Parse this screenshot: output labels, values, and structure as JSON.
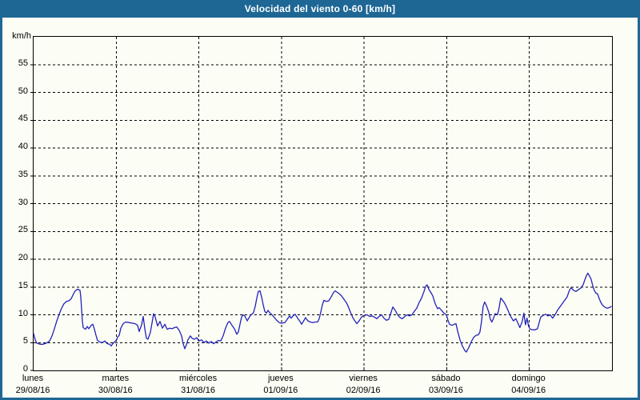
{
  "window": {
    "title": "Velocidad del viento 0-60 [km/h]"
  },
  "colors": {
    "title_bar": "#1e6795",
    "window_border": "#1e6795",
    "background": "#fcfdf5",
    "line": "#2222bb",
    "grid": "#000000"
  },
  "chart_data": {
    "type": "line",
    "title": "Velocidad del viento 0-60 [km/h]",
    "unit_label": "km/h",
    "ylim": [
      0,
      60
    ],
    "ytick_step": 5,
    "yticks": [
      0,
      5,
      10,
      15,
      20,
      25,
      30,
      35,
      40,
      45,
      50,
      55
    ],
    "grid": "dashed",
    "legend_position": "none",
    "x_axis": {
      "unit": "days",
      "days": [
        {
          "name": "lunes",
          "date": "29/08/16"
        },
        {
          "name": "martes",
          "date": "30/08/16"
        },
        {
          "name": "miércoles",
          "date": "31/08/16"
        },
        {
          "name": "jueves",
          "date": "01/09/16"
        },
        {
          "name": "viernes",
          "date": "02/09/16"
        },
        {
          "name": "sábado",
          "date": "03/09/16"
        },
        {
          "name": "domingo",
          "date": "04/09/16"
        }
      ]
    },
    "series": [
      {
        "name": "Velocidad del viento (km/h)",
        "color": "#2222bb",
        "points": [
          [
            0,
            6.6
          ],
          [
            0.019,
            5.5
          ],
          [
            0.039,
            4.9
          ],
          [
            0.077,
            4.7
          ],
          [
            0.116,
            4.7
          ],
          [
            0.155,
            4.9
          ],
          [
            0.194,
            5.3
          ],
          [
            0.223,
            6.2
          ],
          [
            0.252,
            7.5
          ],
          [
            0.281,
            8.9
          ],
          [
            0.31,
            10.1
          ],
          [
            0.339,
            11.2
          ],
          [
            0.368,
            12
          ],
          [
            0.397,
            12.4
          ],
          [
            0.426,
            12.5
          ],
          [
            0.455,
            12.9
          ],
          [
            0.484,
            13.8
          ],
          [
            0.503,
            14.3
          ],
          [
            0.532,
            14.6
          ],
          [
            0.562,
            14.4
          ],
          [
            0.571,
            13.2
          ],
          [
            0.581,
            11
          ],
          [
            0.59,
            9
          ],
          [
            0.6,
            7.7
          ],
          [
            0.629,
            7.4
          ],
          [
            0.649,
            7.9
          ],
          [
            0.668,
            7.5
          ],
          [
            0.697,
            8.1
          ],
          [
            0.716,
            8.3
          ],
          [
            0.736,
            7.4
          ],
          [
            0.755,
            6.3
          ],
          [
            0.774,
            5.4
          ],
          [
            0.803,
            5.1
          ],
          [
            0.833,
            5
          ],
          [
            0.862,
            5.3
          ],
          [
            0.891,
            4.8
          ],
          [
            0.92,
            4.7
          ],
          [
            0.939,
            4.4
          ],
          [
            0.958,
            4.8
          ],
          [
            0.987,
            5.2
          ],
          [
            1.005,
            5.5
          ],
          [
            1.017,
            6
          ],
          [
            1.036,
            6.3
          ],
          [
            1.055,
            7.6
          ],
          [
            1.084,
            8.4
          ],
          [
            1.113,
            8.7
          ],
          [
            1.152,
            8.6
          ],
          [
            1.191,
            8.5
          ],
          [
            1.23,
            8.4
          ],
          [
            1.259,
            8.1
          ],
          [
            1.278,
            7
          ],
          [
            1.307,
            8.2
          ],
          [
            1.326,
            9.7
          ],
          [
            1.346,
            7.5
          ],
          [
            1.365,
            5.8
          ],
          [
            1.384,
            5.6
          ],
          [
            1.413,
            6.8
          ],
          [
            1.433,
            8.5
          ],
          [
            1.452,
            10.2
          ],
          [
            1.472,
            9.6
          ],
          [
            1.501,
            8
          ],
          [
            1.53,
            8.8
          ],
          [
            1.559,
            7.6
          ],
          [
            1.588,
            8.3
          ],
          [
            1.617,
            7.4
          ],
          [
            1.646,
            7.6
          ],
          [
            1.675,
            7.5
          ],
          [
            1.704,
            7.7
          ],
          [
            1.733,
            7.8
          ],
          [
            1.762,
            7.2
          ],
          [
            1.791,
            6.2
          ],
          [
            1.81,
            4.8
          ],
          [
            1.83,
            3.9
          ],
          [
            1.849,
            4.6
          ],
          [
            1.868,
            5.5
          ],
          [
            1.897,
            6.2
          ],
          [
            1.917,
            5.8
          ],
          [
            1.946,
            5.6
          ],
          [
            1.975,
            5.9
          ],
          [
            1.994,
            5.4
          ],
          [
            2.004,
            5.3
          ],
          [
            2.033,
            5.5
          ],
          [
            2.062,
            5
          ],
          [
            2.091,
            5.3
          ],
          [
            2.12,
            4.9
          ],
          [
            2.149,
            5.2
          ],
          [
            2.178,
            4.8
          ],
          [
            2.207,
            5.1
          ],
          [
            2.236,
            5.4
          ],
          [
            2.265,
            5.3
          ],
          [
            2.294,
            6.2
          ],
          [
            2.323,
            7.6
          ],
          [
            2.352,
            8.6
          ],
          [
            2.372,
            8.8
          ],
          [
            2.401,
            8.1
          ],
          [
            2.43,
            7.5
          ],
          [
            2.459,
            6.5
          ],
          [
            2.478,
            6.9
          ],
          [
            2.498,
            8.3
          ],
          [
            2.517,
            9.6
          ],
          [
            2.536,
            10
          ],
          [
            2.556,
            9.8
          ],
          [
            2.585,
            8.9
          ],
          [
            2.604,
            9.4
          ],
          [
            2.624,
            9.9
          ],
          [
            2.643,
            10.1
          ],
          [
            2.662,
            10.4
          ],
          [
            2.682,
            11.5
          ],
          [
            2.701,
            13
          ],
          [
            2.72,
            14.2
          ],
          [
            2.74,
            14.3
          ],
          [
            2.759,
            13.2
          ],
          [
            2.779,
            11.8
          ],
          [
            2.798,
            10.6
          ],
          [
            2.817,
            10.3
          ],
          [
            2.837,
            10.8
          ],
          [
            2.856,
            10.4
          ],
          [
            2.885,
            10
          ],
          [
            2.914,
            9.5
          ],
          [
            2.943,
            9
          ],
          [
            2.972,
            8.6
          ],
          [
            2.991,
            8.5
          ],
          [
            3.011,
            8.5
          ],
          [
            3.04,
            8.6
          ],
          [
            3.069,
            9.2
          ],
          [
            3.098,
            9.8
          ],
          [
            3.117,
            9.4
          ],
          [
            3.146,
            9.9
          ],
          [
            3.166,
            10.1
          ],
          [
            3.195,
            9.4
          ],
          [
            3.224,
            8.8
          ],
          [
            3.243,
            8.3
          ],
          [
            3.272,
            9
          ],
          [
            3.291,
            9.5
          ],
          [
            3.32,
            8.9
          ],
          [
            3.35,
            8.7
          ],
          [
            3.379,
            8.6
          ],
          [
            3.408,
            8.7
          ],
          [
            3.437,
            8.7
          ],
          [
            3.456,
            9.3
          ],
          [
            3.476,
            10.5
          ],
          [
            3.495,
            11.8
          ],
          [
            3.514,
            12.6
          ],
          [
            3.543,
            12.4
          ],
          [
            3.572,
            12.5
          ],
          [
            3.601,
            13.2
          ],
          [
            3.63,
            14
          ],
          [
            3.65,
            14.3
          ],
          [
            3.669,
            14.1
          ],
          [
            3.698,
            13.8
          ],
          [
            3.727,
            13.4
          ],
          [
            3.756,
            12.8
          ],
          [
            3.785,
            12.2
          ],
          [
            3.805,
            11.6
          ],
          [
            3.834,
            10.5
          ],
          [
            3.863,
            9.5
          ],
          [
            3.892,
            8.8
          ],
          [
            3.911,
            8.4
          ],
          [
            3.94,
            8.9
          ],
          [
            3.969,
            9.6
          ],
          [
            3.989,
            9.8
          ],
          [
            4.008,
            9.9
          ],
          [
            4.037,
            10
          ],
          [
            4.066,
            9.7
          ],
          [
            4.095,
            9.8
          ],
          [
            4.124,
            9.6
          ],
          [
            4.153,
            9.3
          ],
          [
            4.182,
            9.7
          ],
          [
            4.211,
            10
          ],
          [
            4.241,
            9.4
          ],
          [
            4.27,
            9
          ],
          [
            4.299,
            9.2
          ],
          [
            4.328,
            10.5
          ],
          [
            4.347,
            11.4
          ],
          [
            4.376,
            10.8
          ],
          [
            4.405,
            10
          ],
          [
            4.434,
            9.5
          ],
          [
            4.463,
            9.3
          ],
          [
            4.492,
            9.7
          ],
          [
            4.521,
            10
          ],
          [
            4.55,
            9.8
          ],
          [
            4.579,
            10
          ],
          [
            4.608,
            10.6
          ],
          [
            4.637,
            11.2
          ],
          [
            4.666,
            12.2
          ],
          [
            4.695,
            13
          ],
          [
            4.725,
            14.2
          ],
          [
            4.744,
            15.1
          ],
          [
            4.763,
            15.4
          ],
          [
            4.783,
            14.6
          ],
          [
            4.812,
            13.9
          ],
          [
            4.831,
            13.4
          ],
          [
            4.86,
            12
          ],
          [
            4.889,
            11.1
          ],
          [
            4.908,
            11.3
          ],
          [
            4.937,
            10.8
          ],
          [
            4.966,
            10.3
          ],
          [
            4.996,
            10
          ],
          [
            5.015,
            9
          ],
          [
            5.034,
            8.3
          ],
          [
            5.063,
            8.1
          ],
          [
            5.092,
            8.3
          ],
          [
            5.112,
            8.4
          ],
          [
            5.131,
            7.1
          ],
          [
            5.16,
            5.5
          ],
          [
            5.189,
            4.4
          ],
          [
            5.218,
            3.6
          ],
          [
            5.237,
            3.3
          ],
          [
            5.266,
            4.1
          ],
          [
            5.295,
            5.1
          ],
          [
            5.324,
            5.9
          ],
          [
            5.353,
            6.3
          ],
          [
            5.382,
            6.4
          ],
          [
            5.402,
            6.9
          ],
          [
            5.421,
            8.8
          ],
          [
            5.44,
            11.5
          ],
          [
            5.459,
            12.3
          ],
          [
            5.479,
            11.7
          ],
          [
            5.508,
            10.5
          ],
          [
            5.527,
            9.2
          ],
          [
            5.546,
            8.7
          ],
          [
            5.566,
            9.4
          ],
          [
            5.585,
            10.2
          ],
          [
            5.614,
            10
          ],
          [
            5.633,
            11.2
          ],
          [
            5.653,
            13
          ],
          [
            5.672,
            12.7
          ],
          [
            5.701,
            12.1
          ],
          [
            5.73,
            11.2
          ],
          [
            5.759,
            10.2
          ],
          [
            5.778,
            9.6
          ],
          [
            5.807,
            8.9
          ],
          [
            5.836,
            9.3
          ],
          [
            5.856,
            8.7
          ],
          [
            5.885,
            7.7
          ],
          [
            5.914,
            8.8
          ],
          [
            5.933,
            10.3
          ],
          [
            5.953,
            8.2
          ],
          [
            5.972,
            9.4
          ],
          [
            5.991,
            7.9
          ],
          [
            6.011,
            7.4
          ],
          [
            6.04,
            7.3
          ],
          [
            6.069,
            7.3
          ],
          [
            6.098,
            7.5
          ],
          [
            6.117,
            8.5
          ],
          [
            6.137,
            9.6
          ],
          [
            6.166,
            9.9
          ],
          [
            6.195,
            10.1
          ],
          [
            6.224,
            9.8
          ],
          [
            6.253,
            10
          ],
          [
            6.282,
            9.4
          ],
          [
            6.311,
            10
          ],
          [
            6.34,
            10.8
          ],
          [
            6.369,
            11.4
          ],
          [
            6.398,
            12
          ],
          [
            6.427,
            12.6
          ],
          [
            6.456,
            13.2
          ],
          [
            6.485,
            14.4
          ],
          [
            6.505,
            14.9
          ],
          [
            6.534,
            14.4
          ],
          [
            6.563,
            14.2
          ],
          [
            6.592,
            14.5
          ],
          [
            6.621,
            14.8
          ],
          [
            6.65,
            15.4
          ],
          [
            6.669,
            16.2
          ],
          [
            6.689,
            17
          ],
          [
            6.708,
            17.5
          ],
          [
            6.727,
            17
          ],
          [
            6.747,
            16.4
          ],
          [
            6.766,
            15.3
          ],
          [
            6.785,
            14.4
          ],
          [
            6.805,
            13.9
          ],
          [
            6.824,
            13.8
          ],
          [
            6.843,
            13
          ],
          [
            6.863,
            12.3
          ],
          [
            6.882,
            11.8
          ],
          [
            6.911,
            11.4
          ],
          [
            6.94,
            11.2
          ],
          [
            6.969,
            11.3
          ],
          [
            6.989,
            11.5
          ]
        ]
      }
    ]
  }
}
